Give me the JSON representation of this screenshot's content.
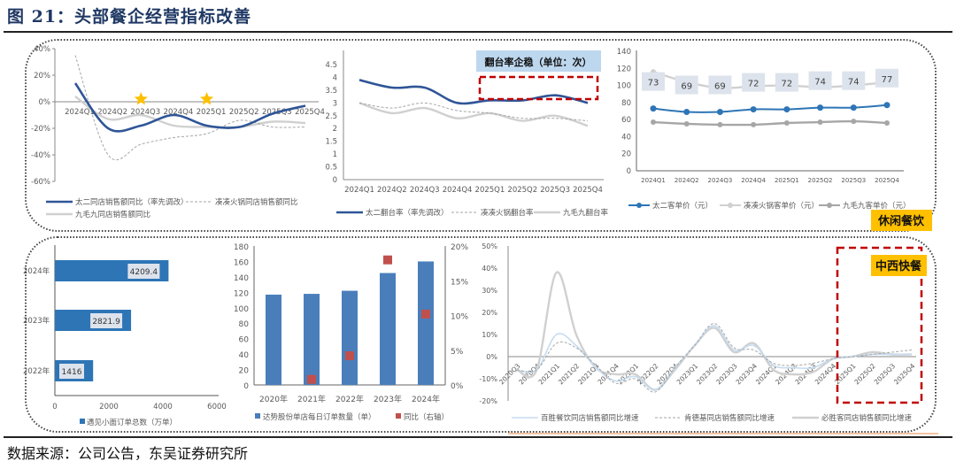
{
  "figure": {
    "title": "图 21：头部餐企经营指标改善",
    "source": "数据来源：公司公告，东吴证券研究所",
    "badges": {
      "leisure": "休闲餐饮",
      "fast_food": "中西快餐"
    },
    "colors": {
      "navy": "#2f5597",
      "blue": "#2e75b6",
      "steel": "#4a7ebb",
      "lightgray": "#d0d0d0",
      "gray": "#a6a6a6",
      "midgray": "#8c8c8c",
      "red": "#c00000",
      "square": "#c0504d",
      "gold": "#ffc000",
      "lightblue": "#bdd7ee",
      "orange": "#f4b183"
    }
  },
  "chart_data": [
    {
      "type": "line",
      "title": "",
      "categories": [
        "2024Q1",
        "2024Q2",
        "2024Q3",
        "2024Q4",
        "2025Q1",
        "2025Q2",
        "2025Q3",
        "2025Q4"
      ],
      "ylim": [
        -60,
        40
      ],
      "yticks": [
        "40%",
        "20%",
        "0%",
        "-20%",
        "-40%",
        "-60%"
      ],
      "ytick_values": [
        40,
        20,
        0,
        -20,
        -40,
        -60
      ],
      "highlight_categories": [
        "2024Q3",
        "2025Q1"
      ],
      "series": [
        {
          "name": "太二同店销售额同比（率先调改）",
          "values": [
            14,
            -20,
            -18,
            -10,
            -18,
            -19,
            -9,
            -3
          ]
        },
        {
          "name": "凑凑火锅同店销售额同比",
          "values": [
            35,
            -40,
            -32,
            -27,
            -24,
            -14,
            -19,
            -19
          ]
        },
        {
          "name": "九毛九同店销售额同比",
          "values": [
            4,
            -13,
            -10,
            -18,
            -19,
            -19,
            -15,
            -16
          ]
        }
      ]
    },
    {
      "type": "line",
      "title": "翻台率企稳（单位：次）",
      "categories": [
        "2024Q1",
        "2024Q2",
        "2024Q3",
        "2024Q4",
        "2025Q1",
        "2025Q2",
        "2025Q3",
        "2025Q4"
      ],
      "ylim": [
        0,
        4.5
      ],
      "yticks": [
        "0",
        "0.5",
        "1",
        "1.5",
        "2",
        "2.5",
        "3",
        "3.5",
        "4",
        "4.5"
      ],
      "ytick_values": [
        0,
        0.5,
        1,
        1.5,
        2,
        2.5,
        3,
        3.5,
        4,
        4.5
      ],
      "series": [
        {
          "name": "太二翻台率（率先调改）",
          "values": [
            3.9,
            3.6,
            3.6,
            3.0,
            3.1,
            3.1,
            3.3,
            3.0
          ]
        },
        {
          "name": "凑凑火锅翻台率",
          "values": [
            3.0,
            2.8,
            3.0,
            2.7,
            2.6,
            2.4,
            2.4,
            2.3
          ]
        },
        {
          "name": "九毛九翻台率",
          "values": [
            3.0,
            2.6,
            2.8,
            2.4,
            2.6,
            2.3,
            2.5,
            2.1
          ]
        }
      ]
    },
    {
      "type": "line",
      "title": "",
      "categories": [
        "2024Q1",
        "2024Q2",
        "2024Q3",
        "2024Q4",
        "2025Q1",
        "2025Q2",
        "2025Q3",
        "2025Q4"
      ],
      "ylim": [
        0,
        140
      ],
      "yticks": [
        "0",
        "20",
        "40",
        "60",
        "80",
        "100",
        "120",
        "140"
      ],
      "ytick_values": [
        0,
        20,
        40,
        60,
        80,
        100,
        120,
        140
      ],
      "series": [
        {
          "name": "太二客单价（元）",
          "values": [
            73,
            69,
            69,
            72,
            72,
            74,
            74,
            77
          ],
          "labels": [
            "73",
            "69",
            "69",
            "72",
            "72",
            "74",
            "74",
            "77"
          ]
        },
        {
          "name": "凑凑火锅客单价（元）",
          "values": [
            116,
            104,
            97,
            99,
            100,
            98,
            100,
            104
          ]
        },
        {
          "name": "九毛九客单价（元）",
          "values": [
            57,
            55,
            54,
            54,
            56,
            57,
            58,
            56
          ]
        }
      ]
    },
    {
      "type": "bar",
      "orientation": "horizontal",
      "categories": [
        "2024年",
        "2023年",
        "2022年"
      ],
      "values": [
        4209.4,
        2821.9,
        1416
      ],
      "labels": [
        "4209.4",
        "2821.9",
        "1416"
      ],
      "xlim": [
        0,
        6000
      ],
      "xticks": [
        "0",
        "2000",
        "4000",
        "6000"
      ],
      "xtick_values": [
        0,
        2000,
        4000,
        6000
      ],
      "legend": "遇见小面订单总数（万单）"
    },
    {
      "type": "bar",
      "categories": [
        "2020年",
        "2021年",
        "2022年",
        "2023年",
        "2024年"
      ],
      "series": [
        {
          "name": "达势股份单店每日订单数量（单）",
          "values": [
            117,
            118,
            122,
            145,
            160
          ]
        },
        {
          "name": "同比（右轴）",
          "values": [
            null,
            0.8,
            4.2,
            18.0,
            10.2
          ]
        }
      ],
      "ylim": [
        0,
        180
      ],
      "yticks": [
        "0",
        "20",
        "40",
        "60",
        "80",
        "100",
        "120",
        "140",
        "160",
        "180"
      ],
      "ytick_values": [
        0,
        20,
        40,
        60,
        80,
        100,
        120,
        140,
        160,
        180
      ],
      "y2lim": [
        0,
        20
      ],
      "y2ticks": [
        "0%",
        "5%",
        "10%",
        "15%",
        "20%"
      ],
      "y2tick_values": [
        0,
        5,
        10,
        15,
        20
      ]
    },
    {
      "type": "line",
      "categories": [
        "2020Q3",
        "2020Q4",
        "2021Q1",
        "2021Q2",
        "2021Q3",
        "2021Q4",
        "2022Q1",
        "2022Q2",
        "2022Q4",
        "2023Q1",
        "2023Q2",
        "2023Q3",
        "2023Q4",
        "2024Q1",
        "2024Q2",
        "2024Q3",
        "2024Q4",
        "2025Q1",
        "2025Q2",
        "2025Q3",
        "2025Q4"
      ],
      "ylim": [
        -20,
        50
      ],
      "yticks": [
        "50%",
        "40%",
        "30%",
        "20%",
        "10%",
        "0%",
        "-10%",
        "-20%"
      ],
      "ytick_values": [
        50,
        40,
        30,
        20,
        10,
        0,
        -10,
        -20
      ],
      "series": [
        {
          "name": "百胜餐饮同店销售额同比增速",
          "values": [
            -6,
            -6,
            10,
            5,
            -5,
            -11,
            -9,
            -15,
            -5,
            5,
            14,
            3,
            5,
            -4,
            -5,
            -5,
            -1,
            0,
            1,
            1,
            1
          ]
        },
        {
          "name": "肯德基同店销售额同比增速",
          "values": [
            -6,
            -6,
            6,
            4,
            -4,
            -12,
            -10,
            -16,
            -5,
            5,
            15,
            4,
            3,
            -3,
            -4,
            -3,
            -1,
            0,
            1,
            2,
            3
          ]
        },
        {
          "name": "必胜客同店销售额同比增速",
          "values": [
            -6,
            -6,
            38,
            10,
            -5,
            -8,
            -8,
            -15,
            -6,
            5,
            13,
            2,
            6,
            -6,
            -8,
            -7,
            -1,
            0,
            2,
            1,
            1
          ]
        }
      ]
    }
  ]
}
